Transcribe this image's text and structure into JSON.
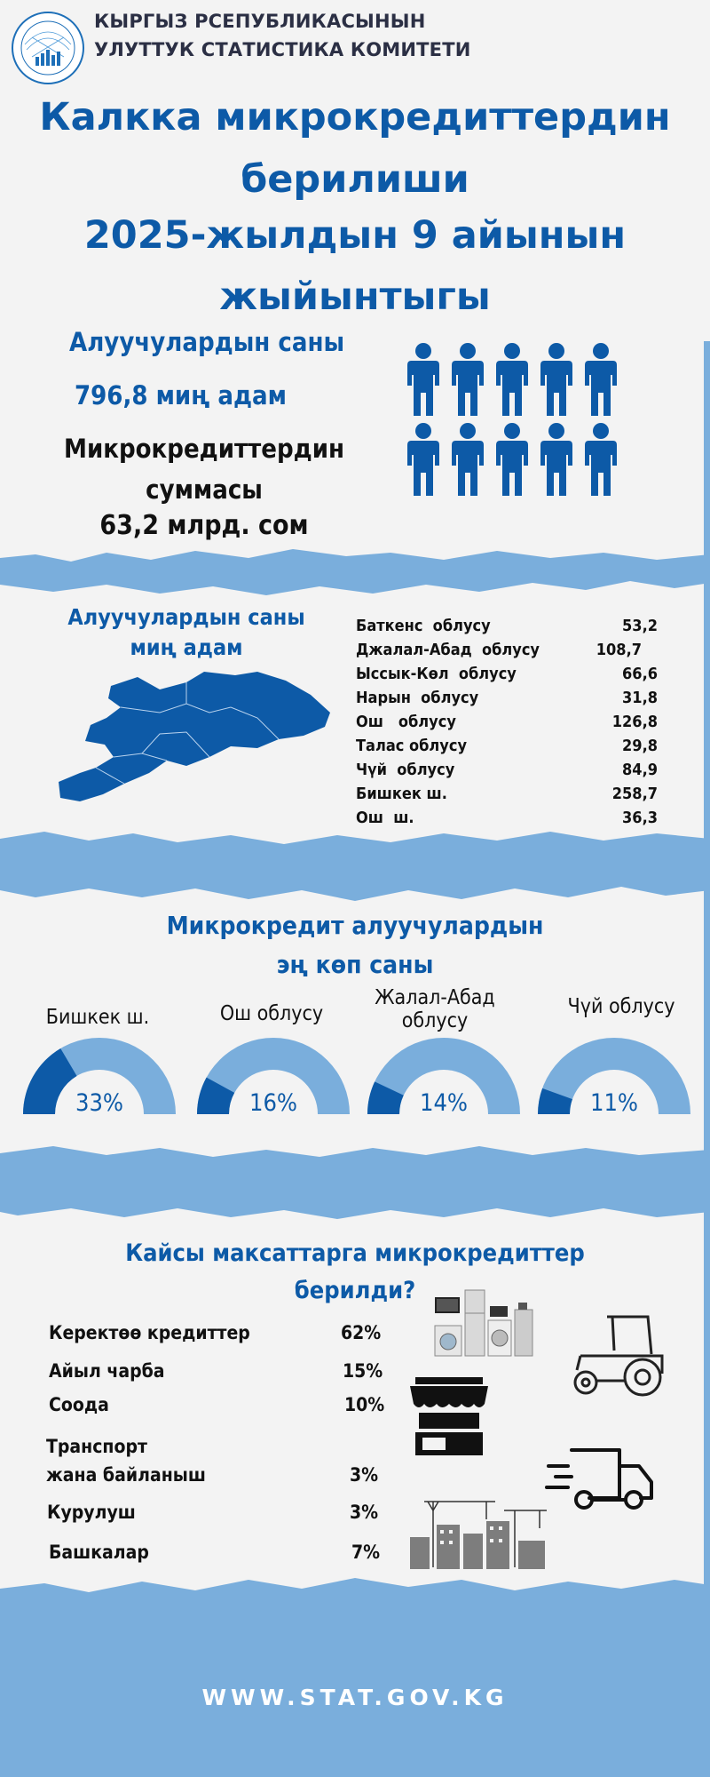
{
  "header": {
    "org_line1": "КЫРГЫЗ РСЕПУБЛИКАСЫНЫН",
    "org_line2": "УЛУТТУК СТАТИСТИКА КОМИТЕТИ",
    "logo_icon": "nsc-logo-icon"
  },
  "title": {
    "line1": "Калкка микрокредиттердин",
    "line2": "берилиши",
    "line3": "2025-жылдын  9 айынын",
    "line4": "жыйынтыгы"
  },
  "summary": {
    "recipients_label": "Алуучулардын саны",
    "recipients_value": "796,8 миң адам",
    "loan_sum_label": "Микрокредиттердин суммасы",
    "loan_sum_value": "63,2 млрд. сом"
  },
  "regions": {
    "title_line1": "Алуучулардын саны",
    "title_line2": "миң адам",
    "rows": [
      {
        "name": "Баткенс  облусу",
        "value": "53,2"
      },
      {
        "name": "Джалал-Абад  облусу",
        "value": "108,7"
      },
      {
        "name": "Ысcык-Көл  облусу",
        "value": "66,6"
      },
      {
        "name": "Нарын  облусу",
        "value": "31,8"
      },
      {
        "name": "Ош   облусу",
        "value": "126,8"
      },
      {
        "name": "Талас облусу",
        "value": "29,8"
      },
      {
        "name": "Чүй  облусу",
        "value": "84,9"
      },
      {
        "name": "Бишкек ш.",
        "value": "258,7"
      },
      {
        "name": "Ош  ш.",
        "value": "36,3"
      }
    ]
  },
  "top_recipients": {
    "title_line1": "Микрокредит алуучулардын",
    "title_line2": "эң көп саны",
    "items": [
      {
        "label_line1": "Бишкек ш.",
        "label_line2": "",
        "percent": "33%",
        "fraction": 0.33
      },
      {
        "label_line1": "Ош облусу",
        "label_line2": "",
        "percent": "16%",
        "fraction": 0.16
      },
      {
        "label_line1": "Жалал-Абад",
        "label_line2": "облусу",
        "percent": "14%",
        "fraction": 0.14
      },
      {
        "label_line1": "Чүй облусу",
        "label_line2": "",
        "percent": "11%",
        "fraction": 0.11
      }
    ]
  },
  "purposes": {
    "title_line1": "Кайсы максаттарга микрокредиттер",
    "title_line2": "берилди?",
    "items": [
      {
        "label": "Керектөө кредиттер",
        "value": "62%"
      },
      {
        "label": "Айыл чарба",
        "value": "15%"
      },
      {
        "label": "Соода",
        "value": "10%"
      },
      {
        "label_line1": "Транспорт",
        "label_line2": "жана байланыш",
        "value": "3%"
      },
      {
        "label": "Курулуш",
        "value": "3%"
      },
      {
        "label": "Башкалар",
        "value": "7%"
      }
    ]
  },
  "footer": {
    "website": "WWW.STAT.GOV.KG"
  },
  "colors": {
    "dark_blue": "#0d5aa7",
    "light_blue": "#7aaedc",
    "background": "#f3f3f3"
  }
}
